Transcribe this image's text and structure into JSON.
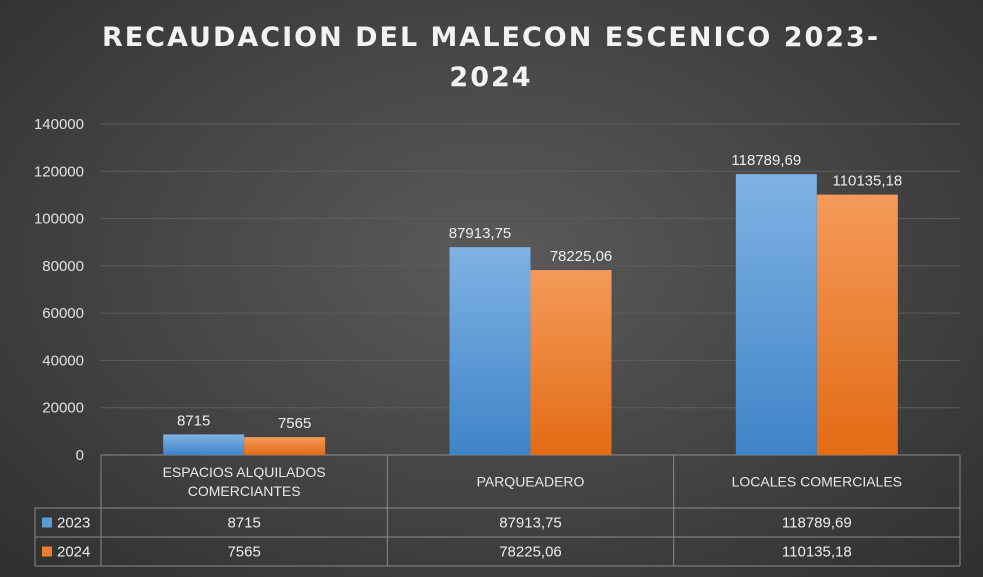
{
  "chart_data": {
    "type": "bar",
    "title": "RECAUDACION DEL MALECON ESCENICO 2023-2024",
    "title_lines": [
      "RECAUDACION DEL MALECON ESCENICO 2023-",
      "2024"
    ],
    "categories": [
      "ESPACIOS ALQUILADOS COMERCIANTES",
      "PARQUEADERO",
      "LOCALES COMERCIALES"
    ],
    "category_lines": [
      [
        "ESPACIOS ALQUILADOS",
        "COMERCIANTES"
      ],
      [
        "PARQUEADERO"
      ],
      [
        "LOCALES COMERCIALES"
      ]
    ],
    "series": [
      {
        "name": "2023",
        "values": [
          8715,
          87913.75,
          118789.69
        ],
        "labels": [
          "8715",
          "87913,75",
          "118789,69"
        ],
        "color": "#5b9bd5"
      },
      {
        "name": "2024",
        "values": [
          7565,
          78225.06,
          110135.18
        ],
        "labels": [
          "7565",
          "78225,06",
          "110135,18"
        ],
        "color": "#ed7d31"
      }
    ],
    "ylim": [
      0,
      140000
    ],
    "yticks": [
      0,
      20000,
      40000,
      60000,
      80000,
      100000,
      120000,
      140000
    ],
    "grid": true,
    "data_table": true,
    "legend": "in data table"
  }
}
